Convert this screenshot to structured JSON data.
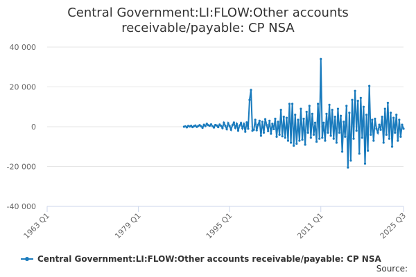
{
  "chart_data": {
    "type": "line",
    "title": "Central Government:LI:FLOW:Other accounts receivable/payable: CP NSA",
    "source": "Source:",
    "grid": true,
    "legend": "bottom",
    "xlim": [
      "1963 Q1",
      "2025 Q3"
    ],
    "xticks": [
      "1963 Q1",
      "1979 Q1",
      "1995 Q1",
      "2011 Q1",
      "2025 Q3"
    ],
    "ylim": [
      -40000,
      40000
    ],
    "yticks": [
      {
        "value": -40000,
        "label": "-40 000"
      },
      {
        "value": -20000,
        "label": "-20 000"
      },
      0,
      {
        "value": 20000,
        "label": "20 000"
      },
      {
        "value": 40000,
        "label": "40 000"
      }
    ],
    "x": [
      "1987 Q1",
      "1987 Q2",
      "1987 Q3",
      "1987 Q4",
      "1988 Q1",
      "1988 Q2",
      "1988 Q3",
      "1988 Q4",
      "1989 Q1",
      "1989 Q2",
      "1989 Q3",
      "1989 Q4",
      "1990 Q1",
      "1990 Q2",
      "1990 Q3",
      "1990 Q4",
      "1991 Q1",
      "1991 Q2",
      "1991 Q3",
      "1991 Q4",
      "1992 Q1",
      "1992 Q2",
      "1992 Q3",
      "1992 Q4",
      "1993 Q1",
      "1993 Q2",
      "1993 Q3",
      "1993 Q4",
      "1994 Q1",
      "1994 Q2",
      "1994 Q3",
      "1994 Q4",
      "1995 Q1",
      "1995 Q2",
      "1995 Q3",
      "1995 Q4",
      "1996 Q1",
      "1996 Q2",
      "1996 Q3",
      "1996 Q4",
      "1997 Q1",
      "1997 Q2",
      "1997 Q3",
      "1997 Q4",
      "1998 Q1",
      "1998 Q2",
      "1998 Q3",
      "1998 Q4",
      "1999 Q1",
      "1999 Q2",
      "1999 Q3",
      "1999 Q4",
      "2000 Q1",
      "2000 Q2",
      "2000 Q3",
      "2000 Q4",
      "2001 Q1",
      "2001 Q2",
      "2001 Q3",
      "2001 Q4",
      "2002 Q1",
      "2002 Q2",
      "2002 Q3",
      "2002 Q4",
      "2003 Q1",
      "2003 Q2",
      "2003 Q3",
      "2003 Q4",
      "2004 Q1",
      "2004 Q2",
      "2004 Q3",
      "2004 Q4",
      "2005 Q1",
      "2005 Q2",
      "2005 Q3",
      "2005 Q4",
      "2006 Q1",
      "2006 Q2",
      "2006 Q3",
      "2006 Q4",
      "2007 Q1",
      "2007 Q2",
      "2007 Q3",
      "2007 Q4",
      "2008 Q1",
      "2008 Q2",
      "2008 Q3",
      "2008 Q4",
      "2009 Q1",
      "2009 Q2",
      "2009 Q3",
      "2009 Q4",
      "2010 Q1",
      "2010 Q2",
      "2010 Q3",
      "2010 Q4",
      "2011 Q1",
      "2011 Q2",
      "2011 Q3",
      "2011 Q4",
      "2012 Q1",
      "2012 Q2",
      "2012 Q3",
      "2012 Q4",
      "2013 Q1",
      "2013 Q2",
      "2013 Q3",
      "2013 Q4",
      "2014 Q1",
      "2014 Q2",
      "2014 Q3",
      "2014 Q4",
      "2015 Q1",
      "2015 Q2",
      "2015 Q3",
      "2015 Q4",
      "2016 Q1",
      "2016 Q2",
      "2016 Q3",
      "2016 Q4",
      "2017 Q1",
      "2017 Q2",
      "2017 Q3",
      "2017 Q4",
      "2018 Q1",
      "2018 Q2",
      "2018 Q3",
      "2018 Q4",
      "2019 Q1",
      "2019 Q2",
      "2019 Q3",
      "2019 Q4",
      "2020 Q1",
      "2020 Q2",
      "2020 Q3",
      "2020 Q4",
      "2021 Q1",
      "2021 Q2",
      "2021 Q3",
      "2021 Q4",
      "2022 Q1",
      "2022 Q2",
      "2022 Q3",
      "2022 Q4",
      "2023 Q1",
      "2023 Q2",
      "2023 Q3",
      "2023 Q4",
      "2024 Q1",
      "2024 Q2",
      "2024 Q3",
      "2024 Q4",
      "2025 Q1",
      "2025 Q2",
      "2025 Q3"
    ],
    "series": [
      {
        "name": "Central Government:LI:FLOW:Other accounts receivable/payable: CP NSA",
        "color": "#1a7bbd",
        "values": [
          0,
          200,
          -300,
          400,
          100,
          500,
          -200,
          300,
          600,
          -100,
          400,
          800,
          200,
          -500,
          1000,
          300,
          1500,
          800,
          500,
          1200,
          300,
          -400,
          900,
          600,
          -200,
          1100,
          400,
          -700,
          2000,
          500,
          -1200,
          1800,
          300,
          -1500,
          800,
          2100,
          -500,
          1400,
          -2000,
          600,
          1900,
          -800,
          1300,
          -2500,
          2200,
          -1000,
          13500,
          18500,
          -2000,
          -1500,
          3500,
          -1800,
          1000,
          3000,
          -4500,
          2500,
          -3000,
          3800,
          900,
          -2200,
          3000,
          -3500,
          1500,
          -1200,
          4000,
          -5000,
          2500,
          -4000,
          8500,
          -4800,
          5000,
          -5500,
          4500,
          -7000,
          11500,
          -8000,
          11500,
          -9500,
          6000,
          -8500,
          3500,
          -7000,
          9000,
          -6500,
          4000,
          -9000,
          7500,
          -3000,
          10500,
          -5500,
          6500,
          -4000,
          2000,
          -7500,
          11500,
          -6000,
          34000,
          -5500,
          2000,
          -7000,
          6500,
          -3000,
          11000,
          -4500,
          8500,
          -6000,
          5000,
          -8000,
          9000,
          -3000,
          5500,
          -12500,
          2500,
          -5000,
          10500,
          -20500,
          7000,
          -17000,
          13500,
          -6000,
          18000,
          -2000,
          13000,
          -13500,
          14500,
          -5500,
          10000,
          -18500,
          6000,
          -12000,
          20500,
          -4000,
          3500,
          -7000,
          4000,
          -1000,
          -3000,
          1000,
          -1500,
          5000,
          -8000,
          9000,
          -4000,
          12000,
          -6000,
          7000,
          -10000,
          4500,
          -3000,
          6000,
          -7000,
          3500,
          -5000,
          1000,
          -1000
        ]
      }
    ]
  }
}
